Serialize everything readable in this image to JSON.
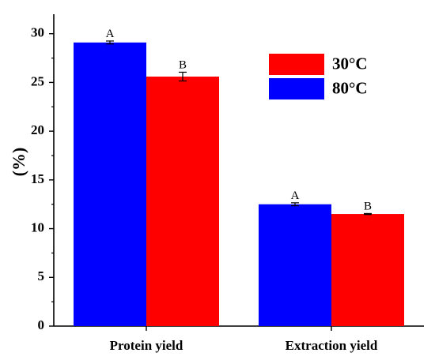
{
  "chart_data": {
    "type": "bar",
    "title": "",
    "xlabel": "",
    "ylabel": "(%)",
    "ylim": [
      0,
      32
    ],
    "yticks": [
      0,
      5,
      10,
      15,
      20,
      25,
      30
    ],
    "categories": [
      "Protein yield",
      "Extraction yield"
    ],
    "bars": [
      {
        "category": "Protein yield",
        "value": 29.1,
        "error": 0.15,
        "color": "#0000ff",
        "label": "A"
      },
      {
        "category": "Protein yield",
        "value": 25.6,
        "error": 0.45,
        "color": "#ff0000",
        "label": "B"
      },
      {
        "category": "Extraction yield",
        "value": 12.5,
        "error": 0.15,
        "color": "#0000ff",
        "label": "A"
      },
      {
        "category": "Extraction yield",
        "value": 11.5,
        "error": 0.05,
        "color": "#ff0000",
        "label": "B"
      }
    ],
    "legend": {
      "position": "top-right",
      "entries": [
        {
          "name": "30°C",
          "color": "#ff0000"
        },
        {
          "name": "80°C",
          "color": "#0000ff"
        }
      ]
    },
    "grid": false
  }
}
